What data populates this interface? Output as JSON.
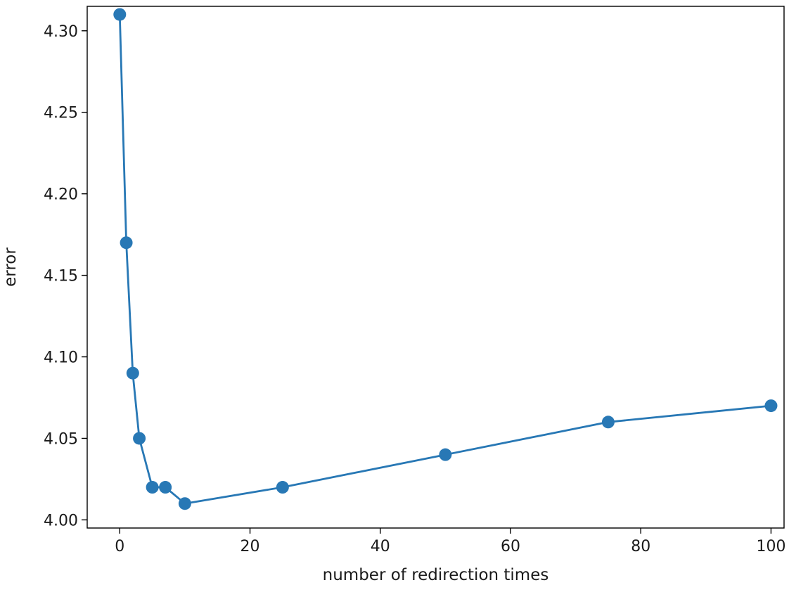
{
  "chart_data": {
    "type": "line",
    "title": "",
    "xlabel": "number of redirection times",
    "ylabel": "error",
    "xlim": [
      -5,
      102
    ],
    "ylim": [
      3.995,
      4.315
    ],
    "xticks": [
      0,
      20,
      40,
      60,
      80,
      100
    ],
    "yticks": [
      4.0,
      4.05,
      4.1,
      4.15,
      4.2,
      4.25,
      4.3
    ],
    "xtick_labels": [
      "0",
      "20",
      "40",
      "60",
      "80",
      "100"
    ],
    "ytick_labels": [
      "4.00",
      "4.05",
      "4.10",
      "4.15",
      "4.20",
      "4.25",
      "4.30"
    ],
    "grid": false,
    "legend": "none",
    "series": [
      {
        "color": "#2878b5",
        "marker": "circle",
        "x": [
          0,
          1,
          2,
          3,
          5,
          7,
          10,
          25,
          50,
          75,
          100
        ],
        "y": [
          4.31,
          4.17,
          4.09,
          4.05,
          4.02,
          4.02,
          4.01,
          4.02,
          4.04,
          4.06,
          4.07
        ]
      }
    ]
  }
}
